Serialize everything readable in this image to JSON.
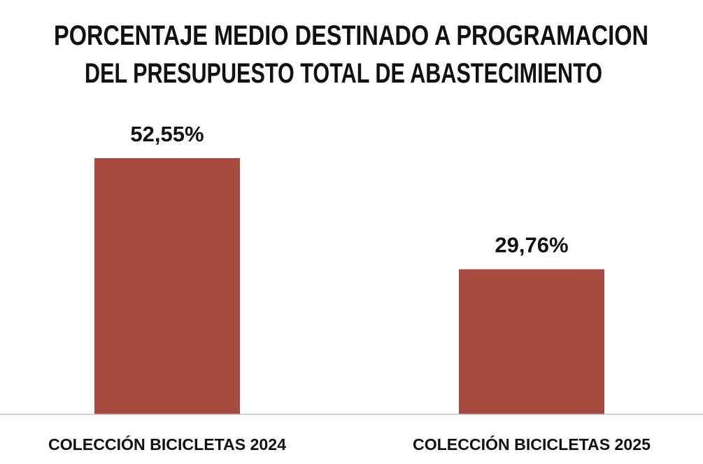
{
  "chart_data": {
    "type": "bar",
    "title": [
      "PORCENTAJE MEDIO DESTINADO A PROGRAMACION",
      "DEL PRESUPUESTO TOTAL DE ABASTECIMIENTO"
    ],
    "categories": [
      "COLECCIÓN BICICLETAS 2024",
      "COLECCIÓN BICICLETAS 2025"
    ],
    "values": [
      52.55,
      29.76
    ],
    "value_labels": [
      "52,55%",
      "29,76%"
    ],
    "xlabel": "",
    "ylabel": "",
    "ylim": [
      0,
      60
    ],
    "grid": false,
    "legend": "none",
    "colors": {
      "bar": "#A84A40",
      "text": "#111111",
      "axis": "#BFBFBF"
    }
  }
}
